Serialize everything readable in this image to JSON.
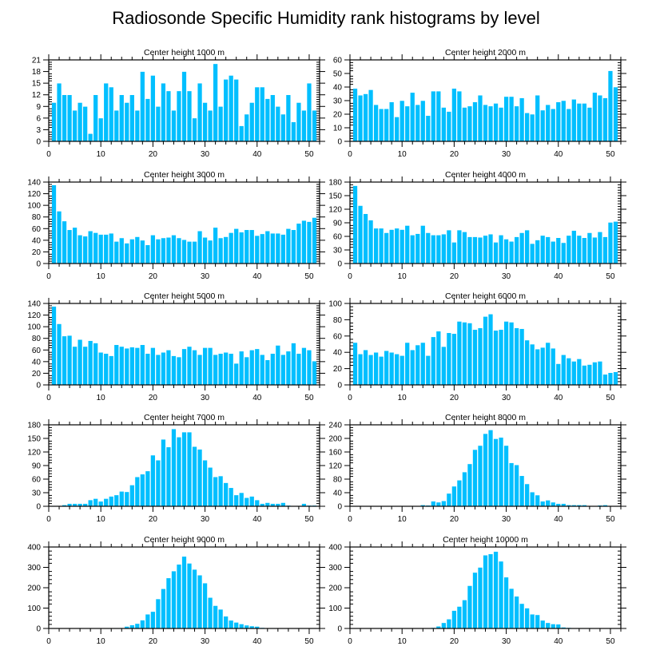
{
  "chart_data": {
    "type": "bar",
    "title": "Radiosonde Specific Humidity rank histograms by level",
    "bar_color": "#00BFFF",
    "x": [
      1,
      2,
      3,
      4,
      5,
      6,
      7,
      8,
      9,
      10,
      11,
      12,
      13,
      14,
      15,
      16,
      17,
      18,
      19,
      20,
      21,
      22,
      23,
      24,
      25,
      26,
      27,
      28,
      29,
      30,
      31,
      32,
      33,
      34,
      35,
      36,
      37,
      38,
      39,
      40,
      41,
      42,
      43,
      44,
      45,
      46,
      47,
      48,
      49,
      50,
      51
    ],
    "xlim": [
      0,
      52
    ],
    "xticks": [
      0,
      10,
      20,
      30,
      40,
      50
    ],
    "grid": false,
    "panels": [
      {
        "title": "Center height 1000 m",
        "ylim": [
          0,
          21
        ],
        "yticks": [
          0,
          3,
          6,
          9,
          12,
          15,
          18,
          21
        ],
        "values": [
          10,
          15,
          12,
          12,
          8,
          10,
          9,
          2,
          12,
          6,
          15,
          14,
          8,
          12,
          10,
          12,
          8,
          18,
          11,
          17,
          9,
          15,
          13,
          8,
          13,
          18,
          13,
          6,
          15,
          10,
          8,
          20,
          9,
          16,
          17,
          16,
          4,
          7,
          10,
          14,
          14,
          11,
          12,
          9,
          7,
          12,
          5,
          10,
          8,
          15,
          8
        ]
      },
      {
        "title": "Center height 2000 m",
        "ylim": [
          0,
          60
        ],
        "yticks": [
          0,
          10,
          20,
          30,
          40,
          50,
          60
        ],
        "values": [
          39,
          34,
          35,
          38,
          27,
          24,
          24,
          29,
          18,
          30,
          26,
          36,
          27,
          30,
          19,
          37,
          37,
          25,
          22,
          39,
          37,
          25,
          26,
          29,
          34,
          27,
          26,
          28,
          25,
          33,
          33,
          26,
          32,
          21,
          20,
          34,
          23,
          27,
          24,
          29,
          30,
          24,
          31,
          28,
          28,
          25,
          36,
          34,
          32,
          52,
          40
        ]
      },
      {
        "title": "Center height 3000 m",
        "ylim": [
          0,
          140
        ],
        "yticks": [
          0,
          20,
          40,
          60,
          80,
          100,
          120,
          140
        ],
        "values": [
          135,
          90,
          73,
          58,
          62,
          49,
          47,
          56,
          53,
          50,
          50,
          52,
          38,
          44,
          35,
          42,
          46,
          40,
          32,
          49,
          42,
          44,
          45,
          49,
          44,
          41,
          38,
          38,
          56,
          45,
          40,
          62,
          44,
          46,
          53,
          60,
          54,
          58,
          58,
          48,
          51,
          56,
          52,
          52,
          50,
          60,
          58,
          69,
          74,
          72,
          79
        ]
      },
      {
        "title": "Center height 4000 m",
        "ylim": [
          0,
          180
        ],
        "yticks": [
          0,
          30,
          60,
          90,
          120,
          150,
          180
        ],
        "values": [
          172,
          128,
          110,
          96,
          78,
          78,
          68,
          75,
          78,
          75,
          84,
          63,
          66,
          84,
          68,
          63,
          63,
          65,
          74,
          47,
          74,
          70,
          59,
          59,
          58,
          62,
          65,
          47,
          63,
          54,
          49,
          59,
          68,
          74,
          44,
          52,
          62,
          59,
          49,
          57,
          46,
          62,
          73,
          62,
          57,
          68,
          58,
          70,
          59,
          91,
          93
        ]
      },
      {
        "title": "Center height 5000 m",
        "ylim": [
          0,
          140
        ],
        "yticks": [
          0,
          20,
          40,
          60,
          80,
          100,
          120,
          140
        ],
        "values": [
          135,
          105,
          84,
          85,
          66,
          78,
          66,
          76,
          72,
          56,
          54,
          50,
          69,
          66,
          63,
          65,
          64,
          69,
          54,
          64,
          52,
          56,
          60,
          50,
          48,
          62,
          66,
          60,
          52,
          64,
          64,
          52,
          54,
          56,
          54,
          37,
          58,
          48,
          60,
          62,
          52,
          43,
          54,
          68,
          52,
          58,
          72,
          54,
          64,
          60,
          41
        ]
      },
      {
        "title": "Center height 6000 m",
        "ylim": [
          0,
          100
        ],
        "yticks": [
          0,
          20,
          40,
          60,
          80,
          100
        ],
        "values": [
          52,
          38,
          43,
          37,
          40,
          35,
          42,
          40,
          38,
          36,
          52,
          43,
          49,
          52,
          36,
          59,
          66,
          47,
          64,
          63,
          78,
          77,
          76,
          68,
          70,
          84,
          87,
          67,
          68,
          78,
          77,
          70,
          69,
          55,
          50,
          44,
          46,
          52,
          45,
          26,
          37,
          33,
          29,
          32,
          24,
          25,
          28,
          29,
          13,
          15,
          16
        ]
      },
      {
        "title": "Center height 7000 m",
        "ylim": [
          0,
          180
        ],
        "yticks": [
          0,
          30,
          60,
          90,
          120,
          150,
          180
        ],
        "values": [
          1,
          1,
          3,
          6,
          6,
          6,
          6,
          14,
          17,
          11,
          17,
          22,
          25,
          33,
          32,
          47,
          65,
          71,
          78,
          113,
          102,
          148,
          131,
          171,
          153,
          164,
          164,
          132,
          126,
          102,
          86,
          65,
          67,
          52,
          41,
          25,
          30,
          19,
          22,
          14,
          6,
          8,
          6,
          6,
          8,
          2,
          0,
          1,
          6,
          2,
          2
        ]
      },
      {
        "title": "Center height 8000 m",
        "ylim": [
          0,
          240
        ],
        "yticks": [
          0,
          40,
          80,
          120,
          160,
          200,
          240
        ],
        "values": [
          0,
          0,
          0,
          0,
          0,
          0,
          0,
          0,
          0,
          0,
          0,
          0,
          0,
          4,
          3,
          15,
          12,
          16,
          38,
          59,
          77,
          101,
          125,
          167,
          179,
          214,
          225,
          199,
          203,
          179,
          128,
          122,
          90,
          66,
          42,
          33,
          15,
          18,
          12,
          8,
          8,
          4,
          4,
          4,
          4,
          1,
          1,
          3,
          4,
          0,
          0
        ]
      },
      {
        "title": "Center height 9000 m",
        "ylim": [
          0,
          400
        ],
        "yticks": [
          0,
          100,
          200,
          300,
          400
        ],
        "values": [
          0,
          0,
          0,
          0,
          0,
          0,
          0,
          0,
          0,
          0,
          0,
          1,
          2,
          2,
          10,
          17,
          24,
          41,
          70,
          83,
          145,
          195,
          248,
          282,
          315,
          354,
          320,
          290,
          262,
          223,
          152,
          112,
          94,
          60,
          40,
          30,
          22,
          16,
          12,
          10,
          4,
          3,
          2,
          0,
          0,
          0,
          0,
          0,
          0,
          0,
          0
        ]
      },
      {
        "title": "Center height 10000 m",
        "ylim": [
          0,
          400
        ],
        "yticks": [
          0,
          100,
          200,
          300,
          400
        ],
        "values": [
          0,
          0,
          0,
          0,
          0,
          0,
          0,
          0,
          0,
          0,
          0,
          0,
          0,
          1,
          3,
          4,
          11,
          28,
          46,
          88,
          108,
          140,
          210,
          275,
          300,
          360,
          366,
          378,
          330,
          252,
          196,
          158,
          122,
          100,
          70,
          67,
          40,
          28,
          22,
          21,
          6,
          4,
          3,
          3,
          2,
          2,
          1,
          1,
          0,
          0,
          0
        ]
      }
    ]
  }
}
